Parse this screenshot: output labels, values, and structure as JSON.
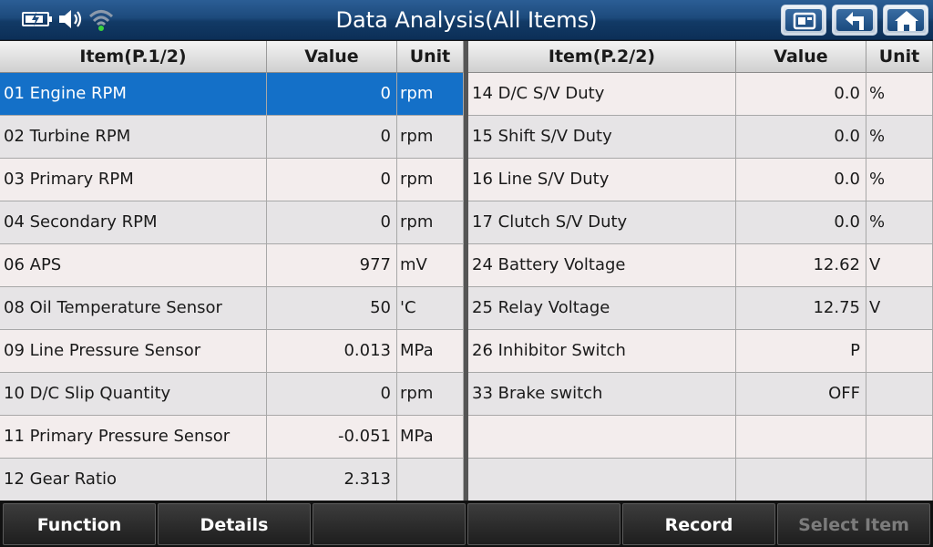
{
  "title": "Data Analysis(All Items)",
  "status_icons": [
    "battery-charging-icon",
    "speaker-icon",
    "wifi-icon"
  ],
  "toolbar_icons": [
    "screenshot-icon",
    "back-arrow-icon",
    "home-icon"
  ],
  "left_table": {
    "headers": {
      "item": "Item(P.1/2)",
      "value": "Value",
      "unit": "Unit"
    },
    "rows": [
      {
        "item": "01 Engine RPM",
        "value": "0",
        "unit": "rpm",
        "selected": true
      },
      {
        "item": "02 Turbine RPM",
        "value": "0",
        "unit": "rpm"
      },
      {
        "item": "03 Primary RPM",
        "value": "0",
        "unit": "rpm"
      },
      {
        "item": "04 Secondary RPM",
        "value": "0",
        "unit": "rpm"
      },
      {
        "item": "06 APS",
        "value": "977",
        "unit": "mV"
      },
      {
        "item": "08 Oil Temperature Sensor",
        "value": "50",
        "unit": "'C"
      },
      {
        "item": "09 Line Pressure Sensor",
        "value": "0.013",
        "unit": "MPa"
      },
      {
        "item": "10 D/C Slip Quantity",
        "value": "0",
        "unit": "rpm"
      },
      {
        "item": "11 Primary Pressure Sensor",
        "value": "-0.051",
        "unit": "MPa"
      },
      {
        "item": "12 Gear Ratio",
        "value": "2.313",
        "unit": ""
      }
    ]
  },
  "right_table": {
    "headers": {
      "item": "Item(P.2/2)",
      "value": "Value",
      "unit": "Unit"
    },
    "rows": [
      {
        "item": "14 D/C S/V Duty",
        "value": "0.0",
        "unit": "%"
      },
      {
        "item": "15 Shift S/V Duty",
        "value": "0.0",
        "unit": "%"
      },
      {
        "item": "16 Line S/V Duty",
        "value": "0.0",
        "unit": "%"
      },
      {
        "item": "17 Clutch S/V Duty",
        "value": "0.0",
        "unit": "%"
      },
      {
        "item": "24 Battery Voltage",
        "value": "12.62",
        "unit": "V"
      },
      {
        "item": "25 Relay Voltage",
        "value": "12.75",
        "unit": "V"
      },
      {
        "item": "26 Inhibitor Switch",
        "value": "P",
        "unit": ""
      },
      {
        "item": "33 Brake switch",
        "value": "OFF",
        "unit": ""
      },
      {
        "item": "",
        "value": "",
        "unit": ""
      },
      {
        "item": "",
        "value": "",
        "unit": ""
      }
    ]
  },
  "bottom_buttons": [
    {
      "label": "Function",
      "enabled": true
    },
    {
      "label": "Details",
      "enabled": true
    },
    {
      "label": "",
      "enabled": true
    },
    {
      "label": "",
      "enabled": true
    },
    {
      "label": "Record",
      "enabled": true
    },
    {
      "label": "Select Item",
      "enabled": false
    }
  ],
  "colors": {
    "selected_row": "#1470c8",
    "title_bar": "#1d4a7c",
    "disabled_text": "#7c7c7c"
  }
}
